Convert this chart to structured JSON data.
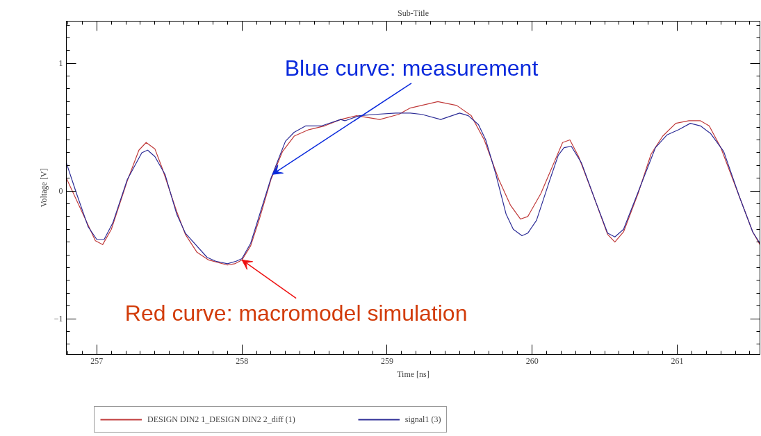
{
  "chart_data": {
    "type": "line",
    "title": "Sub-Title",
    "xlabel": "Time [ns]",
    "ylabel": "Voltage [V]",
    "xlim": [
      256.79,
      261.57
    ],
    "ylim": [
      -1.28,
      1.33
    ],
    "xticks": [
      257,
      258,
      259,
      260,
      261
    ],
    "yticks": [
      -1,
      0,
      1
    ],
    "grid": false,
    "legend": "bottom",
    "line_style": "solid",
    "marker": "none",
    "annotations": [
      {
        "text": "Blue curve: measurement",
        "x": 258.21,
        "y": 0.13
      },
      {
        "text": "Red curve: macromodel simulation",
        "x": 258.0,
        "y": -0.54
      }
    ],
    "series": [
      {
        "name": "DESIGN DIN2 1_DESIGN DIN2 2_diff (1)",
        "color": "#c03a3a",
        "x": [
          256.79,
          256.99,
          257.04,
          257.1,
          257.21,
          257.29,
          257.34,
          257.4,
          257.45,
          257.55,
          257.61,
          257.69,
          257.77,
          257.9,
          257.95,
          258.0,
          258.06,
          258.12,
          258.2,
          258.28,
          258.36,
          258.46,
          258.57,
          258.68,
          258.79,
          258.95,
          259.08,
          259.16,
          259.35,
          259.48,
          259.58,
          259.67,
          259.77,
          259.85,
          259.92,
          259.97,
          260.06,
          260.15,
          260.21,
          260.26,
          260.32,
          260.42,
          260.52,
          260.57,
          260.63,
          260.73,
          260.82,
          260.9,
          260.99,
          261.08,
          261.16,
          261.22,
          261.3,
          261.43,
          261.52,
          261.57
        ],
        "values": [
          0.1,
          -0.39,
          -0.42,
          -0.3,
          0.08,
          0.32,
          0.38,
          0.33,
          0.18,
          -0.16,
          -0.34,
          -0.48,
          -0.54,
          -0.58,
          -0.57,
          -0.54,
          -0.43,
          -0.22,
          0.09,
          0.31,
          0.43,
          0.48,
          0.51,
          0.56,
          0.59,
          0.56,
          0.6,
          0.65,
          0.7,
          0.67,
          0.59,
          0.4,
          0.09,
          -0.11,
          -0.22,
          -0.2,
          -0.02,
          0.22,
          0.38,
          0.4,
          0.27,
          -0.03,
          -0.34,
          -0.4,
          -0.32,
          -0.02,
          0.29,
          0.43,
          0.53,
          0.55,
          0.55,
          0.51,
          0.34,
          -0.05,
          -0.32,
          -0.42
        ]
      },
      {
        "name": "signal1 (3)",
        "color": "#2c2c96",
        "x": [
          256.79,
          256.86,
          256.94,
          257.0,
          257.05,
          257.11,
          257.21,
          257.31,
          257.35,
          257.4,
          257.47,
          257.55,
          257.61,
          257.76,
          257.82,
          257.9,
          257.96,
          258.0,
          258.06,
          258.2,
          258.3,
          258.36,
          258.44,
          258.55,
          258.68,
          258.71,
          258.81,
          258.92,
          259.06,
          259.16,
          259.24,
          259.37,
          259.5,
          259.56,
          259.63,
          259.68,
          259.75,
          259.82,
          259.87,
          259.93,
          259.97,
          260.03,
          260.12,
          260.18,
          260.22,
          260.27,
          260.34,
          260.44,
          260.52,
          260.57,
          260.63,
          260.74,
          260.85,
          260.93,
          261.01,
          261.09,
          261.16,
          261.23,
          261.32,
          261.43,
          261.52,
          261.57
        ],
        "values": [
          0.22,
          -0.02,
          -0.28,
          -0.38,
          -0.38,
          -0.25,
          0.09,
          0.3,
          0.32,
          0.27,
          0.13,
          -0.18,
          -0.33,
          -0.52,
          -0.55,
          -0.57,
          -0.55,
          -0.53,
          -0.41,
          0.1,
          0.39,
          0.46,
          0.51,
          0.51,
          0.56,
          0.55,
          0.59,
          0.6,
          0.61,
          0.61,
          0.6,
          0.56,
          0.61,
          0.59,
          0.52,
          0.4,
          0.13,
          -0.18,
          -0.3,
          -0.35,
          -0.33,
          -0.23,
          0.08,
          0.28,
          0.34,
          0.35,
          0.22,
          -0.09,
          -0.33,
          -0.36,
          -0.3,
          0.02,
          0.34,
          0.44,
          0.48,
          0.53,
          0.51,
          0.45,
          0.31,
          -0.05,
          -0.32,
          -0.41
        ]
      }
    ]
  }
}
